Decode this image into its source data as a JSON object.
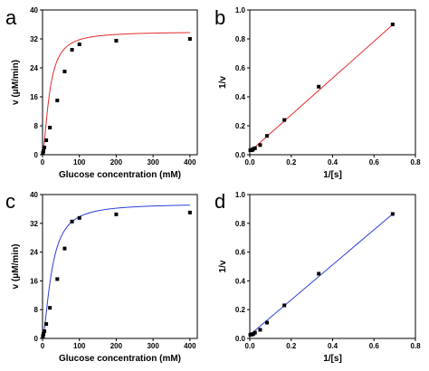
{
  "chart_data": [
    {
      "panel_label": "a",
      "type": "scatter",
      "xlabel": "Glucose concentration (mM)",
      "ylabel": "v (μM/min)",
      "xlim": [
        0,
        420
      ],
      "ylim": [
        0,
        40
      ],
      "x_ticks": [
        0,
        100,
        200,
        300,
        400
      ],
      "y_ticks": [
        0,
        8,
        16,
        24,
        32,
        40
      ],
      "x_tick_labels": [
        "0",
        "100",
        "200",
        "300",
        "400"
      ],
      "y_tick_labels": [
        "0",
        "8",
        "16",
        "24",
        "32",
        "40"
      ],
      "grid": false,
      "legend": "none",
      "points": {
        "x": [
          1,
          2.5,
          5,
          10,
          20,
          40,
          60,
          80,
          100,
          200,
          400
        ],
        "y": [
          0.5,
          1.0,
          2.0,
          4.0,
          7.5,
          15,
          23,
          29,
          30.5,
          31.5,
          32
        ]
      },
      "fit": {
        "type": "line",
        "color": "#e32b2b",
        "vmax": 34,
        "km": 19,
        "n": 1.6
      },
      "marker_color": "#000000"
    },
    {
      "panel_label": "b",
      "type": "scatter",
      "xlabel": "1/[s]",
      "ylabel": "1/v",
      "xlim": [
        0,
        0.8
      ],
      "ylim": [
        0,
        1.0
      ],
      "x_ticks": [
        0,
        0.2,
        0.4,
        0.6,
        0.8
      ],
      "y_ticks": [
        0,
        0.2,
        0.4,
        0.6,
        0.8,
        1.0
      ],
      "x_tick_labels": [
        "0.0",
        "0.2",
        "0.4",
        "0.6",
        "0.8"
      ],
      "y_tick_labels": [
        "0.0",
        "0.2",
        "0.4",
        "0.6",
        "0.8",
        "1.0"
      ],
      "grid": false,
      "legend": "none",
      "points": {
        "x": [
          0.0025,
          0.005,
          0.01,
          0.0125,
          0.0167,
          0.025,
          0.05,
          0.083,
          0.167,
          0.333,
          0.69
        ],
        "y": [
          0.031,
          0.031,
          0.032,
          0.034,
          0.04,
          0.045,
          0.067,
          0.13,
          0.24,
          0.47,
          0.9
        ]
      },
      "fit": {
        "type": "line",
        "color": "#e32b2b",
        "slope": 1.27,
        "intercept": 0.021
      },
      "marker_color": "#000000"
    },
    {
      "panel_label": "c",
      "type": "scatter",
      "xlabel": "Glucose concentration (mM)",
      "ylabel": "v (μM/min)",
      "xlim": [
        0,
        420
      ],
      "ylim": [
        0,
        40
      ],
      "x_ticks": [
        0,
        100,
        200,
        300,
        400
      ],
      "y_ticks": [
        0,
        8,
        16,
        24,
        32,
        40
      ],
      "x_tick_labels": [
        "0",
        "100",
        "200",
        "300",
        "400"
      ],
      "y_tick_labels": [
        "0",
        "8",
        "16",
        "24",
        "32",
        "40"
      ],
      "grid": false,
      "legend": "none",
      "points": {
        "x": [
          1,
          2.5,
          5,
          10,
          20,
          40,
          60,
          80,
          100,
          200,
          400
        ],
        "y": [
          0.6,
          1.2,
          2.0,
          4.0,
          8.5,
          16.5,
          25,
          32.5,
          33.5,
          34.5,
          35
        ]
      },
      "fit": {
        "type": "line",
        "color": "#2a3fd8",
        "vmax": 37.5,
        "km": 25,
        "n": 1.6
      },
      "marker_color": "#000000"
    },
    {
      "panel_label": "d",
      "type": "scatter",
      "xlabel": "1/[s]",
      "ylabel": "1/v",
      "xlim": [
        0,
        0.8
      ],
      "ylim": [
        0,
        1.0
      ],
      "x_ticks": [
        0,
        0.2,
        0.4,
        0.6,
        0.8
      ],
      "y_ticks": [
        0,
        0.2,
        0.4,
        0.6,
        0.8,
        1.0
      ],
      "x_tick_labels": [
        "0.0",
        "0.2",
        "0.4",
        "0.6",
        "0.8"
      ],
      "y_tick_labels": [
        "0.0",
        "0.2",
        "0.4",
        "0.6",
        "0.8",
        "1.0"
      ],
      "grid": false,
      "legend": "none",
      "points": {
        "x": [
          0.0025,
          0.005,
          0.01,
          0.0125,
          0.0167,
          0.025,
          0.05,
          0.083,
          0.167,
          0.333,
          0.69
        ],
        "y": [
          0.025,
          0.027,
          0.028,
          0.029,
          0.03,
          0.04,
          0.06,
          0.11,
          0.23,
          0.45,
          0.865
        ]
      },
      "fit": {
        "type": "line",
        "color": "#2a3fd8",
        "slope": 1.218,
        "intercept": 0.0245
      },
      "marker_color": "#000000"
    }
  ]
}
